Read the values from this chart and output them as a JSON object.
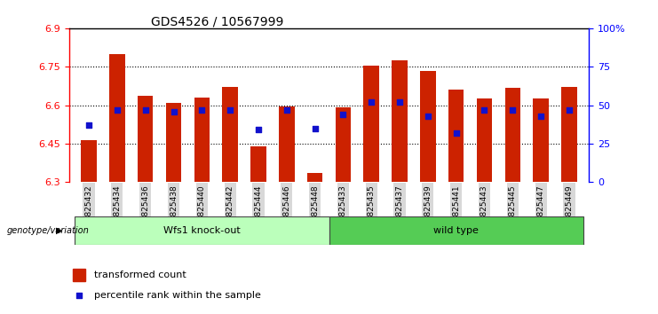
{
  "title": "GDS4526 / 10567999",
  "samples": [
    "GSM825432",
    "GSM825434",
    "GSM825436",
    "GSM825438",
    "GSM825440",
    "GSM825442",
    "GSM825444",
    "GSM825446",
    "GSM825448",
    "GSM825433",
    "GSM825435",
    "GSM825437",
    "GSM825439",
    "GSM825441",
    "GSM825443",
    "GSM825445",
    "GSM825447",
    "GSM825449"
  ],
  "bar_values": [
    6.463,
    6.8,
    6.635,
    6.608,
    6.628,
    6.672,
    6.438,
    6.595,
    6.335,
    6.592,
    6.755,
    6.775,
    6.735,
    6.66,
    6.625,
    6.668,
    6.625,
    6.672
  ],
  "percentile_values": [
    37,
    47,
    47,
    46,
    47,
    47,
    34,
    47,
    35,
    44,
    52,
    52,
    43,
    32,
    47,
    47,
    43,
    47
  ],
  "group1_label": "Wfs1 knock-out",
  "group2_label": "wild type",
  "group1_count": 9,
  "group2_count": 9,
  "genotype_label": "genotype/variation",
  "ymin": 6.3,
  "ymax": 6.9,
  "yticks": [
    6.3,
    6.45,
    6.6,
    6.75,
    6.9
  ],
  "right_ytick_labels": [
    "0",
    "25",
    "50",
    "75",
    "100%"
  ],
  "right_ytick_vals": [
    0,
    25,
    50,
    75,
    100
  ],
  "bar_color": "#cc2200",
  "percentile_color": "#1111cc",
  "group1_bg": "#bbffbb",
  "group2_bg": "#55cc55",
  "legend_bar_label": "transformed count",
  "legend_pct_label": "percentile rank within the sample"
}
